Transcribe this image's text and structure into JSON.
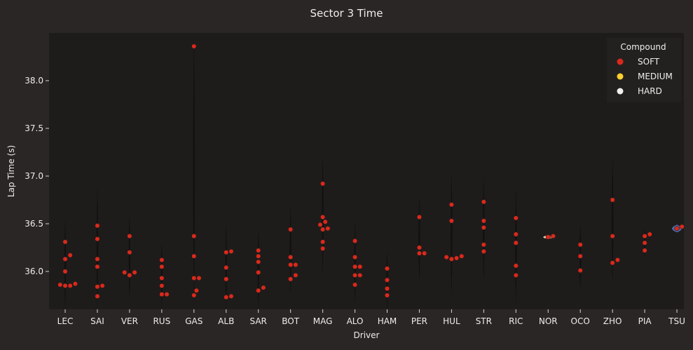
{
  "chart_data": {
    "type": "scatter",
    "title": "Sector 3 Time",
    "xlabel": "Driver",
    "ylabel": "Lap Time (s)",
    "ylim": [
      35.6,
      38.5
    ],
    "yticks": [
      36.0,
      36.5,
      37.0,
      37.5,
      38.0
    ],
    "ytick_labels": [
      "36.0",
      "36.5",
      "37.0",
      "37.5",
      "38.0"
    ],
    "grid": false,
    "legend": {
      "title": "Compound",
      "placement": "top-right",
      "entries": [
        {
          "name": "SOFT",
          "color": "#da291c"
        },
        {
          "name": "MEDIUM",
          "color": "#ffd12e"
        },
        {
          "name": "HARD",
          "color": "#f0f0ec"
        }
      ]
    },
    "categories": [
      "LEC",
      "SAI",
      "VER",
      "RUS",
      "GAS",
      "ALB",
      "SAR",
      "BOT",
      "MAG",
      "ALO",
      "HAM",
      "PER",
      "HUL",
      "STR",
      "RIC",
      "NOR",
      "OCO",
      "ZHO",
      "PIA",
      "TSU"
    ],
    "series": [
      {
        "name": "SOFT",
        "color": "#da291c",
        "points": [
          {
            "x": "LEC",
            "y": 35.87
          },
          {
            "x": "LEC",
            "y": 35.85
          },
          {
            "x": "LEC",
            "y": 35.85
          },
          {
            "x": "LEC",
            "y": 35.86
          },
          {
            "x": "LEC",
            "y": 36.0
          },
          {
            "x": "LEC",
            "y": 36.13
          },
          {
            "x": "LEC",
            "y": 36.17
          },
          {
            "x": "LEC",
            "y": 36.31
          },
          {
            "x": "SAI",
            "y": 35.74
          },
          {
            "x": "SAI",
            "y": 35.84
          },
          {
            "x": "SAI",
            "y": 35.85
          },
          {
            "x": "SAI",
            "y": 36.05
          },
          {
            "x": "SAI",
            "y": 36.13
          },
          {
            "x": "SAI",
            "y": 36.34
          },
          {
            "x": "SAI",
            "y": 36.48
          },
          {
            "x": "VER",
            "y": 35.96
          },
          {
            "x": "VER",
            "y": 35.99
          },
          {
            "x": "VER",
            "y": 35.99
          },
          {
            "x": "VER",
            "y": 36.2
          },
          {
            "x": "VER",
            "y": 36.37
          },
          {
            "x": "RUS",
            "y": 35.76
          },
          {
            "x": "RUS",
            "y": 35.76
          },
          {
            "x": "RUS",
            "y": 35.85
          },
          {
            "x": "RUS",
            "y": 35.93
          },
          {
            "x": "RUS",
            "y": 36.05
          },
          {
            "x": "RUS",
            "y": 36.12
          },
          {
            "x": "GAS",
            "y": 35.75
          },
          {
            "x": "GAS",
            "y": 35.8
          },
          {
            "x": "GAS",
            "y": 35.93
          },
          {
            "x": "GAS",
            "y": 35.93
          },
          {
            "x": "GAS",
            "y": 36.16
          },
          {
            "x": "GAS",
            "y": 36.37
          },
          {
            "x": "GAS",
            "y": 38.36
          },
          {
            "x": "ALB",
            "y": 35.74
          },
          {
            "x": "ALB",
            "y": 35.73
          },
          {
            "x": "ALB",
            "y": 35.92
          },
          {
            "x": "ALB",
            "y": 36.04
          },
          {
            "x": "ALB",
            "y": 36.2
          },
          {
            "x": "ALB",
            "y": 36.21
          },
          {
            "x": "SAR",
            "y": 35.83
          },
          {
            "x": "SAR",
            "y": 35.8
          },
          {
            "x": "SAR",
            "y": 35.99
          },
          {
            "x": "SAR",
            "y": 36.1
          },
          {
            "x": "SAR",
            "y": 36.16
          },
          {
            "x": "SAR",
            "y": 36.22
          },
          {
            "x": "BOT",
            "y": 35.96
          },
          {
            "x": "BOT",
            "y": 35.92
          },
          {
            "x": "BOT",
            "y": 36.07
          },
          {
            "x": "BOT",
            "y": 36.07
          },
          {
            "x": "BOT",
            "y": 36.15
          },
          {
            "x": "BOT",
            "y": 36.44
          },
          {
            "x": "MAG",
            "y": 36.24
          },
          {
            "x": "MAG",
            "y": 36.31
          },
          {
            "x": "MAG",
            "y": 36.45
          },
          {
            "x": "MAG",
            "y": 36.44
          },
          {
            "x": "MAG",
            "y": 36.49
          },
          {
            "x": "MAG",
            "y": 36.52
          },
          {
            "x": "MAG",
            "y": 36.57
          },
          {
            "x": "MAG",
            "y": 36.92
          },
          {
            "x": "ALO",
            "y": 35.86
          },
          {
            "x": "ALO",
            "y": 35.96
          },
          {
            "x": "ALO",
            "y": 35.96
          },
          {
            "x": "ALO",
            "y": 36.05
          },
          {
            "x": "ALO",
            "y": 36.05
          },
          {
            "x": "ALO",
            "y": 36.15
          },
          {
            "x": "ALO",
            "y": 36.32
          },
          {
            "x": "HAM",
            "y": 35.75
          },
          {
            "x": "HAM",
            "y": 35.82
          },
          {
            "x": "HAM",
            "y": 35.91
          },
          {
            "x": "HAM",
            "y": 36.03
          },
          {
            "x": "PER",
            "y": 36.19
          },
          {
            "x": "PER",
            "y": 36.19
          },
          {
            "x": "PER",
            "y": 36.25
          },
          {
            "x": "PER",
            "y": 36.57
          },
          {
            "x": "HUL",
            "y": 36.16
          },
          {
            "x": "HUL",
            "y": 36.14
          },
          {
            "x": "HUL",
            "y": 36.13
          },
          {
            "x": "HUL",
            "y": 36.15
          },
          {
            "x": "HUL",
            "y": 36.53
          },
          {
            "x": "HUL",
            "y": 36.7
          },
          {
            "x": "STR",
            "y": 36.21
          },
          {
            "x": "STR",
            "y": 36.28
          },
          {
            "x": "STR",
            "y": 36.46
          },
          {
            "x": "STR",
            "y": 36.53
          },
          {
            "x": "STR",
            "y": 36.73
          },
          {
            "x": "RIC",
            "y": 35.96
          },
          {
            "x": "RIC",
            "y": 36.06
          },
          {
            "x": "RIC",
            "y": 36.3
          },
          {
            "x": "RIC",
            "y": 36.39
          },
          {
            "x": "RIC",
            "y": 36.56
          },
          {
            "x": "NOR",
            "y": 36.37
          },
          {
            "x": "NOR",
            "y": 36.36
          },
          {
            "x": "OCO",
            "y": 36.01
          },
          {
            "x": "OCO",
            "y": 36.16
          },
          {
            "x": "OCO",
            "y": 36.28
          },
          {
            "x": "ZHO",
            "y": 36.12
          },
          {
            "x": "ZHO",
            "y": 36.09
          },
          {
            "x": "ZHO",
            "y": 36.37
          },
          {
            "x": "ZHO",
            "y": 36.75
          },
          {
            "x": "PIA",
            "y": 36.22
          },
          {
            "x": "PIA",
            "y": 36.3
          },
          {
            "x": "PIA",
            "y": 36.37
          },
          {
            "x": "PIA",
            "y": 36.39
          },
          {
            "x": "TSU",
            "y": 36.47
          },
          {
            "x": "TSU",
            "y": 36.45
          }
        ]
      }
    ],
    "violins": [
      {
        "x": "LEC",
        "min": 35.6,
        "max": 36.55,
        "color": "#1e1c1b"
      },
      {
        "x": "SAI",
        "min": 35.6,
        "max": 36.9,
        "color": "#1e1c1b"
      },
      {
        "x": "VER",
        "min": 35.7,
        "max": 36.6,
        "color": "#1e1c1b"
      },
      {
        "x": "RUS",
        "min": 35.6,
        "max": 36.3,
        "color": "#1e1c1b"
      },
      {
        "x": "GAS",
        "min": 35.6,
        "max": 38.5,
        "color": "#1e1c1b"
      },
      {
        "x": "ALB",
        "min": 35.6,
        "max": 36.5,
        "color": "#1e1c1b"
      },
      {
        "x": "SAR",
        "min": 35.6,
        "max": 36.45,
        "color": "#1e1c1b"
      },
      {
        "x": "BOT",
        "min": 35.75,
        "max": 36.7,
        "color": "#1e1c1b"
      },
      {
        "x": "MAG",
        "min": 35.95,
        "max": 37.2,
        "color": "#1e1c1b"
      },
      {
        "x": "ALO",
        "min": 35.65,
        "max": 36.55,
        "color": "#1e1c1b"
      },
      {
        "x": "HAM",
        "min": 35.6,
        "max": 36.2,
        "color": "#1e1c1b"
      },
      {
        "x": "PER",
        "min": 35.9,
        "max": 36.8,
        "color": "#1e1c1b"
      },
      {
        "x": "HUL",
        "min": 35.75,
        "max": 37.05,
        "color": "#1e1c1b"
      },
      {
        "x": "STR",
        "min": 35.9,
        "max": 37.0,
        "color": "#1e1c1b"
      },
      {
        "x": "RIC",
        "min": 35.65,
        "max": 36.9,
        "color": "#1e1c1b"
      },
      {
        "x": "NOR",
        "min": 36.34,
        "max": 36.38,
        "color": "#f2d8b8"
      },
      {
        "x": "OCO",
        "min": 35.8,
        "max": 36.5,
        "color": "#1e1c1b"
      },
      {
        "x": "ZHO",
        "min": 35.85,
        "max": 37.2,
        "color": "#1e1c1b"
      },
      {
        "x": "PIA",
        "min": 36.15,
        "max": 36.45,
        "color": "#1e1c1b"
      },
      {
        "x": "TSU",
        "min": 36.41,
        "max": 36.49,
        "color": "#4e6fb0"
      }
    ]
  }
}
